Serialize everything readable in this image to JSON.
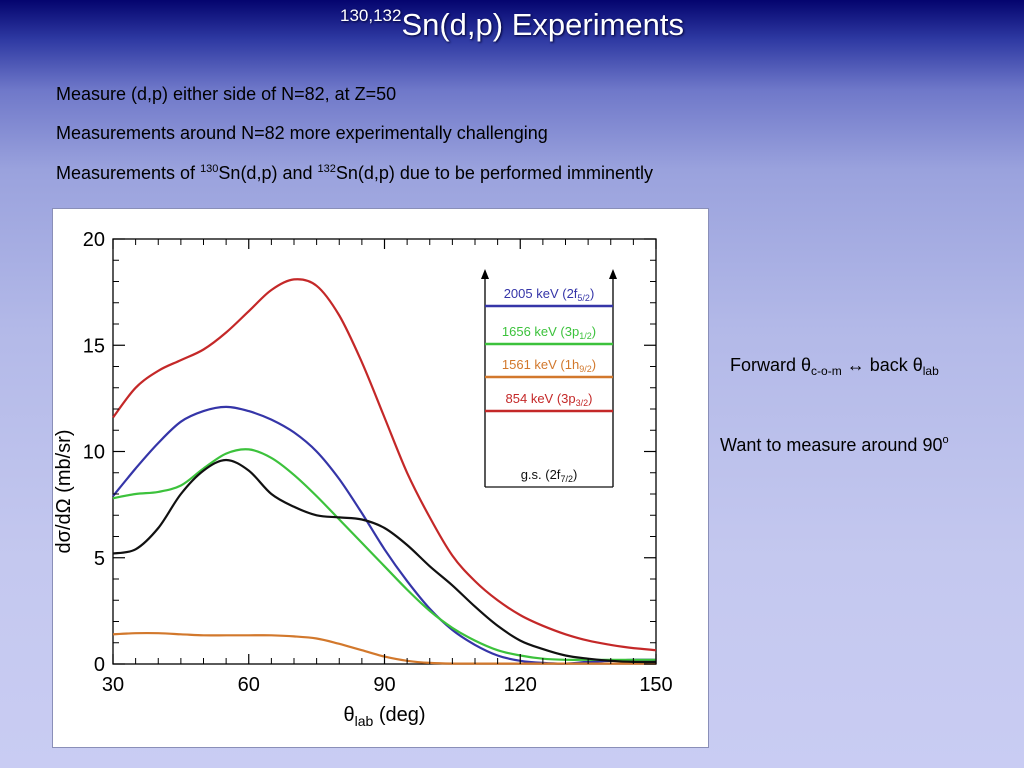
{
  "slide": {
    "title_sup": "130,132",
    "title_main": "Sn(d,p) Experiments",
    "bullets": {
      "b1": "Measure (d,p) either side of N=82, at Z=50",
      "b2": "Measurements around N=82 more experimentally challenging",
      "b3_pre": "Measurements of ",
      "b3_sup1": "130",
      "b3_mid": "Sn(d,p) and ",
      "b3_sup2": "132",
      "b3_post": "Sn(d,p) due to be performed imminently"
    },
    "side_note_1": {
      "pre": "Forward θ",
      "sub1": "c-o-m",
      "mid": "  ↔ back θ",
      "sub2": "lab"
    },
    "side_note_2": {
      "text": "Want to measure around 90",
      "sup": "o"
    }
  },
  "chart_data": {
    "type": "line",
    "title": "",
    "xlabel": {
      "symbol": "θ",
      "sub": "lab",
      "rest": " (deg)"
    },
    "ylabel": "dσ/dΩ (mb/sr)",
    "xlim": [
      30,
      150
    ],
    "ylim": [
      0,
      20
    ],
    "xticks": [
      30,
      60,
      90,
      120,
      150
    ],
    "yticks": [
      0,
      5,
      10,
      15,
      20
    ],
    "grid": false,
    "series": [
      {
        "color": "#c42828",
        "x": [
          30,
          35,
          40,
          45,
          50,
          55,
          60,
          65,
          70,
          75,
          80,
          85,
          90,
          95,
          100,
          105,
          110,
          115,
          120,
          125,
          130,
          135,
          140,
          145,
          150
        ],
        "y": [
          11.6,
          13.0,
          13.8,
          14.3,
          14.8,
          15.6,
          16.6,
          17.6,
          18.1,
          17.8,
          16.4,
          14.2,
          11.6,
          9.0,
          6.9,
          5.1,
          3.9,
          3.0,
          2.3,
          1.8,
          1.4,
          1.1,
          0.9,
          0.75,
          0.65
        ]
      },
      {
        "color": "#3535a8",
        "x": [
          30,
          35,
          40,
          45,
          50,
          55,
          60,
          65,
          70,
          75,
          80,
          85,
          90,
          95,
          100,
          105,
          110,
          115,
          120,
          125,
          130,
          135,
          140,
          145,
          150
        ],
        "y": [
          7.9,
          9.2,
          10.4,
          11.4,
          11.9,
          12.1,
          11.9,
          11.5,
          10.9,
          10.0,
          8.7,
          7.1,
          5.4,
          3.9,
          2.6,
          1.6,
          0.9,
          0.4,
          0.15,
          0.05,
          0.02,
          0.1,
          0.15,
          0.2,
          0.2
        ]
      },
      {
        "color": "#3cc23c",
        "x": [
          30,
          35,
          40,
          45,
          50,
          55,
          60,
          65,
          70,
          75,
          80,
          85,
          90,
          95,
          100,
          105,
          110,
          115,
          120,
          125,
          130,
          135,
          140,
          145,
          150
        ],
        "y": [
          7.8,
          8.0,
          8.1,
          8.4,
          9.2,
          9.9,
          10.1,
          9.7,
          8.9,
          7.9,
          6.8,
          5.7,
          4.6,
          3.5,
          2.5,
          1.7,
          1.1,
          0.65,
          0.4,
          0.25,
          0.2,
          0.2,
          0.2,
          0.2,
          0.2
        ]
      },
      {
        "color": "#d2782c",
        "x": [
          30,
          35,
          40,
          45,
          50,
          55,
          60,
          65,
          70,
          75,
          80,
          85,
          90,
          95,
          100,
          105,
          110,
          115,
          120,
          125,
          130,
          135,
          140,
          145,
          150
        ],
        "y": [
          1.4,
          1.45,
          1.45,
          1.4,
          1.35,
          1.35,
          1.35,
          1.35,
          1.3,
          1.2,
          0.95,
          0.65,
          0.35,
          0.15,
          0.05,
          0.02,
          0.02,
          0.02,
          0.02,
          0.02,
          0.02,
          0.02,
          0.02,
          0.02,
          0.02
        ]
      },
      {
        "color": "#111111",
        "x": [
          30,
          35,
          40,
          45,
          50,
          55,
          60,
          65,
          70,
          75,
          80,
          85,
          90,
          95,
          100,
          105,
          110,
          115,
          120,
          125,
          130,
          135,
          140,
          145,
          150
        ],
        "y": [
          5.2,
          5.4,
          6.4,
          8.0,
          9.1,
          9.6,
          9.1,
          8.0,
          7.4,
          7.0,
          6.9,
          6.8,
          6.4,
          5.6,
          4.6,
          3.7,
          2.7,
          1.8,
          1.1,
          0.7,
          0.4,
          0.25,
          0.15,
          0.1,
          0.1
        ]
      }
    ],
    "legend": {
      "placement": "top-right",
      "entries": [
        {
          "label": "2005 keV (2f",
          "sub": "5/2",
          "close": ")",
          "color": "#3535a8"
        },
        {
          "label": "1656 keV (3p",
          "sub": "1/2",
          "close": ")",
          "color": "#3cc23c"
        },
        {
          "label": "1561 keV (1h",
          "sub": "9/2",
          "close": ")",
          "color": "#d2782c"
        },
        {
          "label": "854 keV (3p",
          "sub": "3/2",
          "close": ")",
          "color": "#c42828"
        },
        {
          "label": "g.s. (2f",
          "sub": "7/2",
          "close": ")",
          "color": "#111111"
        }
      ]
    }
  }
}
